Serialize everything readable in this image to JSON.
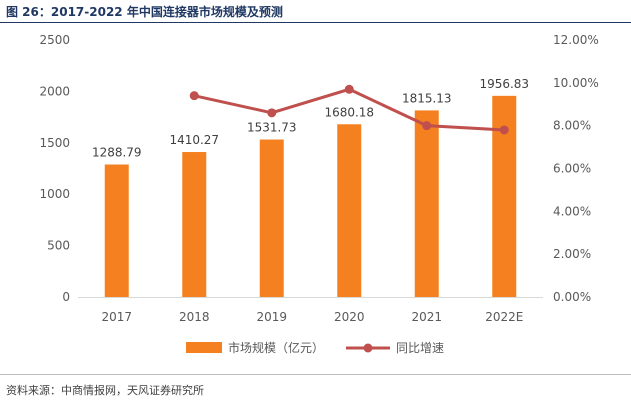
{
  "figure": {
    "title": "图 26：2017-2022 年中国连接器市场规模及预测",
    "source": "资料来源：中商情报网，天风证券研究所"
  },
  "chart_data": {
    "type": "bar",
    "categories": [
      "2017",
      "2018",
      "2019",
      "2020",
      "2021",
      "2022E"
    ],
    "series": [
      {
        "name": "市场规模（亿元）",
        "type": "bar",
        "axis": "left",
        "values": [
          1288.79,
          1410.27,
          1531.73,
          1680.18,
          1815.13,
          1956.83
        ],
        "labels": [
          "1288.79",
          "1410.27",
          "1531.73",
          "1680.18",
          "1815.13",
          "1956.83"
        ],
        "color": "#f5801f"
      },
      {
        "name": "同比增速",
        "type": "line",
        "axis": "right",
        "values": [
          null,
          9.4,
          8.6,
          9.7,
          8.0,
          7.8
        ],
        "color": "#c0504d"
      }
    ],
    "y_left": {
      "lim": [
        0,
        2500
      ],
      "ticks": [
        "0",
        "500",
        "1000",
        "1500",
        "2000",
        "2500"
      ]
    },
    "y_right": {
      "lim": [
        0,
        12
      ],
      "ticks": [
        "0.00%",
        "2.00%",
        "4.00%",
        "6.00%",
        "8.00%",
        "10.00%",
        "12.00%"
      ]
    },
    "legend_position": "bottom",
    "grid": false
  }
}
